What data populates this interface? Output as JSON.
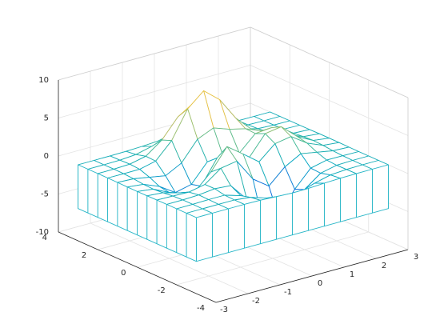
{
  "chart_data": {
    "type": "mesh",
    "x": [
      -3,
      -2.5,
      -2,
      -1.5,
      -1,
      -0.5,
      0,
      0.5,
      1,
      1.5,
      2,
      2.5,
      3
    ],
    "y": [
      -3,
      -2.5,
      -2,
      -1.5,
      -1,
      -0.5,
      0,
      0.5,
      1,
      1.5,
      2,
      2.5,
      3
    ],
    "z": [
      [
        0.0,
        0.0,
        0.0,
        0.0,
        -0.03,
        -0.14,
        -0.24,
        -0.22,
        -0.11,
        -0.03,
        -0.01,
        0.0,
        0.0
      ],
      [
        0.0,
        0.0,
        0.01,
        0.0,
        -0.23,
        -0.91,
        -1.57,
        -1.41,
        -0.69,
        -0.18,
        -0.03,
        0.0,
        0.0
      ],
      [
        0.0,
        0.01,
        0.05,
        0.05,
        -0.59,
        -2.64,
        -4.76,
        -4.35,
        -2.1,
        -0.53,
        -0.06,
        0.0,
        0.0
      ],
      [
        0.0,
        0.01,
        0.08,
        0.33,
        0.15,
        -2.19,
        -5.68,
        -5.76,
        -2.64,
        -0.44,
        0.04,
        0.03,
        0.0
      ],
      [
        -0.01,
        -0.06,
        -0.13,
        0.3,
        1.86,
        2.22,
        -0.72,
        -2.22,
        -0.27,
        0.88,
        0.5,
        0.11,
        0.01
      ],
      [
        -0.03,
        -0.2,
        -0.8,
        -1.21,
        0.8,
        3.55,
        2.0,
        0.39,
        2.2,
        2.56,
        1.12,
        0.24,
        0.03
      ],
      [
        -0.04,
        -0.3,
        -1.33,
        -2.77,
        -1.65,
        1.48,
        0.98,
        0.37,
        2.94,
        3.27,
        1.41,
        0.3,
        0.03
      ],
      [
        -0.03,
        -0.25,
        -1.12,
        -2.49,
        -2.0,
        0.39,
        0.46,
        0.38,
        2.38,
        2.56,
        1.1,
        0.23,
        0.03
      ],
      [
        -0.01,
        -0.11,
        -0.48,
        -0.86,
        0.23,
        2.79,
        3.69,
        2.94,
        2.43,
        1.58,
        0.58,
        0.11,
        0.01
      ],
      [
        0.0,
        -0.02,
        -0.01,
        0.48,
        2.61,
        6.2,
        8.0,
        6.25,
        3.25,
        1.19,
        0.29,
        0.05,
        0.0
      ],
      [
        0.0,
        0.01,
        0.08,
        0.55,
        2.1,
        4.56,
        5.86,
        4.57,
        2.21,
        0.68,
        0.13,
        0.02,
        0.0
      ],
      [
        0.0,
        0.0,
        0.03,
        0.19,
        0.69,
        1.47,
        1.88,
        1.47,
        0.7,
        0.2,
        0.04,
        0.0,
        0.0
      ],
      [
        0.0,
        0.0,
        0.01,
        0.03,
        0.11,
        0.23,
        0.3,
        0.23,
        0.11,
        0.03,
        0.01,
        0.0,
        0.0
      ]
    ],
    "xlim": [
      -3,
      3
    ],
    "ylim": [
      -4,
      4
    ],
    "zlim": [
      -10,
      10
    ],
    "xticks": [
      -3,
      -2,
      -1,
      0,
      1,
      2,
      3
    ],
    "yticks": [
      -4,
      -2,
      0,
      2,
      4
    ],
    "zticks": [
      -10,
      -5,
      0,
      5,
      10
    ],
    "grid": true,
    "colormap": [
      "#352a87",
      "#0363e1",
      "#1485d4",
      "#06a7c6",
      "#38b99e",
      "#92bf73",
      "#d9ba56",
      "#fcce2e",
      "#f9fb0e"
    ],
    "curtain_color": "#2bb7c8"
  }
}
